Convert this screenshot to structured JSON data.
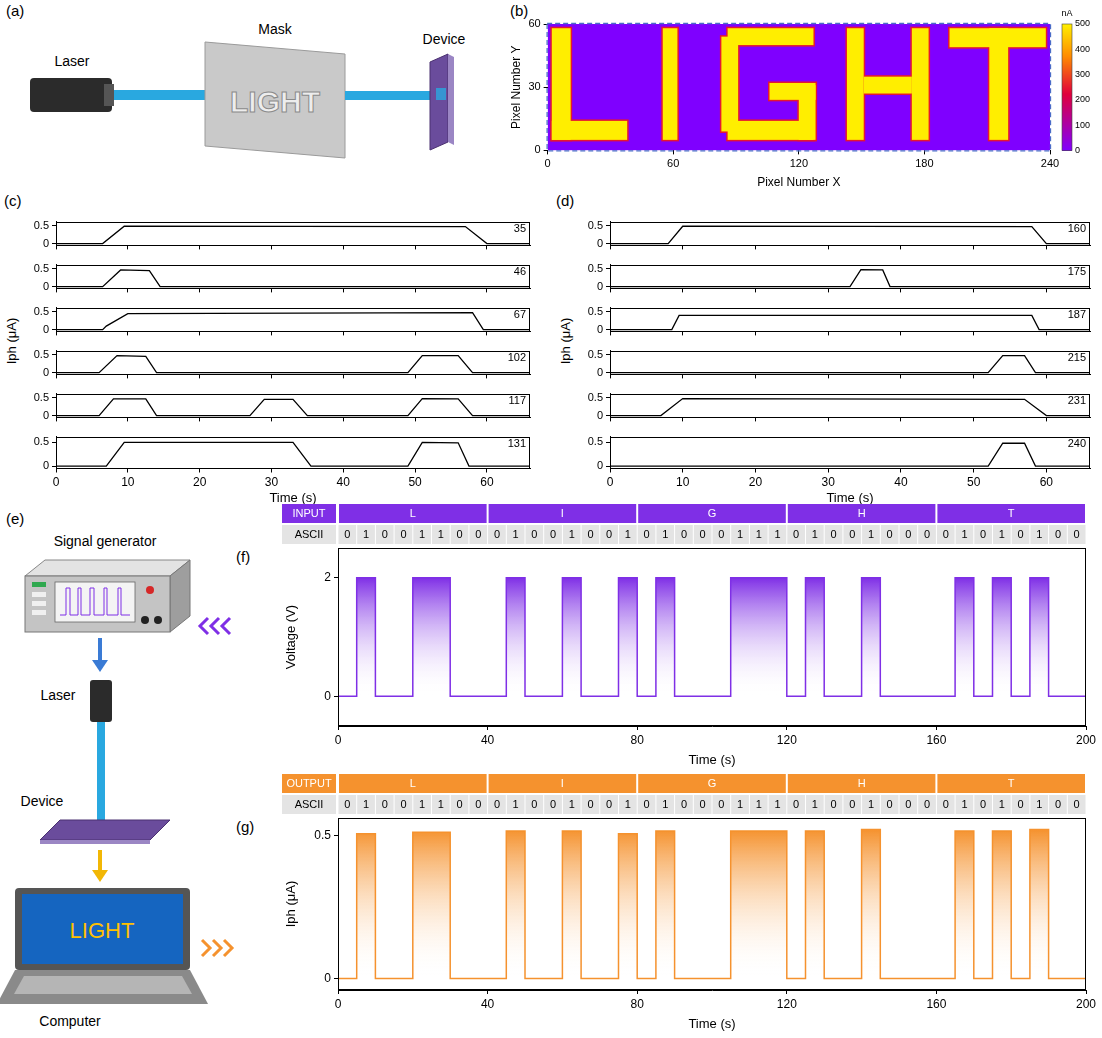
{
  "diagram_a": {
    "panel": "(a)",
    "labels": {
      "laser": "Laser",
      "mask": "Mask",
      "device": "Device"
    },
    "mask_text": "LIGHT"
  },
  "chart_data": [
    {
      "panel": "(b)",
      "type": "heatmap",
      "xlabel": "Pixel Number X",
      "ylabel": "Pixel Number Y",
      "xlim": [
        0,
        240
      ],
      "xticks": [
        0,
        60,
        120,
        180,
        240
      ],
      "ylim": [
        0,
        60
      ],
      "yticks": [
        0,
        30,
        60
      ],
      "background": 0,
      "cells": [
        {
          "x": [
            2,
            11
          ],
          "y": [
            5,
            58
          ],
          "value": 500
        },
        {
          "x": [
            2,
            38
          ],
          "y": [
            5,
            14
          ],
          "value": 500
        },
        {
          "x": [
            55,
            62
          ],
          "y": [
            5,
            58
          ],
          "value": 500
        },
        {
          "x": [
            83,
            91
          ],
          "y": [
            9,
            54
          ],
          "value": 500
        },
        {
          "x": [
            86,
            127
          ],
          "y": [
            50,
            58
          ],
          "value": 500
        },
        {
          "x": [
            86,
            127
          ],
          "y": [
            5,
            14
          ],
          "value": 500
        },
        {
          "x": [
            120,
            128
          ],
          "y": [
            5,
            31
          ],
          "value": 500
        },
        {
          "x": [
            106,
            128
          ],
          "y": [
            24,
            32
          ],
          "value": 500
        },
        {
          "x": [
            143,
            151
          ],
          "y": [
            5,
            58
          ],
          "value": 500
        },
        {
          "x": [
            174,
            182
          ],
          "y": [
            5,
            58
          ],
          "value": 500
        },
        {
          "x": [
            151,
            174
          ],
          "y": [
            27,
            35
          ],
          "value": 500
        },
        {
          "x": [
            192,
            238
          ],
          "y": [
            49,
            58
          ],
          "value": 500
        },
        {
          "x": [
            211,
            220
          ],
          "y": [
            5,
            58
          ],
          "value": 500
        }
      ],
      "colorbar": {
        "label": "nA",
        "range": [
          0,
          500
        ],
        "ticks": [
          0,
          100,
          200,
          300,
          400,
          500
        ]
      }
    },
    {
      "panel": "(c)",
      "type": "line",
      "xlabel": "Time (s)",
      "ylabel": "Iph (μA)",
      "xlim": [
        0,
        66
      ],
      "xticks": [
        0,
        10,
        20,
        30,
        40,
        50,
        60
      ],
      "ylim": [
        -0.05,
        0.62
      ],
      "yticks": [
        0,
        0.5
      ],
      "color": "#000000",
      "series": [
        {
          "name": "35",
          "x": [
            0,
            6.5,
            9.5,
            57,
            60,
            66
          ],
          "values": [
            0,
            0,
            0.49,
            0.48,
            0,
            0
          ]
        },
        {
          "name": "46",
          "x": [
            0,
            6.5,
            9,
            13,
            14.5,
            66
          ],
          "values": [
            0,
            0,
            0.47,
            0.45,
            0,
            0
          ]
        },
        {
          "name": "67",
          "x": [
            0,
            6.5,
            7,
            10,
            58,
            59.5,
            66
          ],
          "values": [
            0,
            0,
            0.1,
            0.45,
            0.48,
            0,
            0
          ]
        },
        {
          "name": "102",
          "x": [
            0,
            6,
            8.5,
            12.5,
            14,
            49,
            51,
            56,
            58,
            66
          ],
          "values": [
            0,
            0,
            0.48,
            0.46,
            0,
            0,
            0.48,
            0.48,
            0,
            0
          ]
        },
        {
          "name": "117",
          "x": [
            0,
            6,
            8,
            12.5,
            14,
            27,
            29,
            33,
            35,
            49,
            51,
            56,
            58,
            66
          ],
          "values": [
            0,
            0,
            0.47,
            0.47,
            0,
            0,
            0.46,
            0.46,
            0,
            0,
            0.48,
            0.47,
            0,
            0
          ]
        },
        {
          "name": "131",
          "x": [
            0,
            7,
            9.5,
            33,
            35.5,
            49,
            51,
            56,
            57.5,
            66
          ],
          "values": [
            0,
            0,
            0.5,
            0.5,
            0,
            0,
            0.5,
            0.49,
            0,
            0
          ]
        }
      ]
    },
    {
      "panel": "(d)",
      "type": "line",
      "xlabel": "Time (s)",
      "ylabel": "Iph (μA)",
      "xlim": [
        0,
        66
      ],
      "xticks": [
        0,
        10,
        20,
        30,
        40,
        50,
        60
      ],
      "ylim": [
        -0.05,
        0.62
      ],
      "yticks": [
        0,
        0.5
      ],
      "color": "#000000",
      "series": [
        {
          "name": "160",
          "x": [
            0,
            8,
            10,
            58,
            60,
            66
          ],
          "values": [
            0,
            0,
            0.49,
            0.48,
            0,
            0
          ]
        },
        {
          "name": "175",
          "x": [
            0,
            33,
            34.5,
            37.5,
            38.5,
            66
          ],
          "values": [
            0,
            0,
            0.48,
            0.47,
            0,
            0
          ]
        },
        {
          "name": "187",
          "x": [
            0,
            8.5,
            9.5,
            58,
            59,
            66
          ],
          "values": [
            0,
            0,
            0.4,
            0.4,
            0,
            0
          ]
        },
        {
          "name": "215",
          "x": [
            0,
            52,
            54,
            57,
            58.5,
            66
          ],
          "values": [
            0,
            0,
            0.48,
            0.48,
            0,
            0
          ]
        },
        {
          "name": "231",
          "x": [
            0,
            7,
            10,
            57,
            60,
            66
          ],
          "values": [
            0,
            0,
            0.48,
            0.46,
            0,
            0
          ]
        },
        {
          "name": "240",
          "x": [
            0,
            52,
            54,
            57,
            58.5,
            66
          ],
          "values": [
            0,
            0,
            0.48,
            0.48,
            0,
            0
          ]
        }
      ]
    },
    {
      "panel": "(f)",
      "type": "line",
      "xlabel": "Time (s)",
      "ylabel": "Voltage (V)",
      "xlim": [
        0,
        200
      ],
      "xticks": [
        0,
        40,
        80,
        120,
        160,
        200
      ],
      "ylim": [
        -0.5,
        2.5
      ],
      "yticks": [
        0,
        2
      ],
      "color": "#7f2fe6",
      "header": {
        "label": "INPUT",
        "row_label": "ASCII",
        "chars": [
          "L",
          "I",
          "G",
          "H",
          "T"
        ],
        "codes": [
          "01001100",
          "01001001",
          "01000111",
          "01001000",
          "01010100"
        ]
      },
      "x": [
        0,
        5,
        5,
        10,
        10,
        20,
        20,
        30,
        30,
        45,
        45,
        50,
        50,
        60,
        60,
        65,
        65,
        75,
        75,
        80,
        80,
        85,
        85,
        90,
        90,
        105,
        105,
        120,
        120,
        125,
        125,
        130,
        130,
        140,
        140,
        145,
        145,
        165,
        165,
        170,
        170,
        175,
        175,
        180,
        180,
        185,
        185,
        190,
        190,
        200
      ],
      "values": [
        0,
        0,
        2,
        2,
        0,
        0,
        2,
        2,
        0,
        0,
        2,
        2,
        0,
        0,
        2,
        2,
        0,
        0,
        2,
        2,
        0,
        0,
        2,
        2,
        0,
        0,
        2,
        2,
        0,
        0,
        2,
        2,
        0,
        0,
        2,
        2,
        0,
        0,
        2,
        2,
        0,
        0,
        2,
        2,
        0,
        0,
        2,
        2,
        0,
        0
      ]
    },
    {
      "panel": "(g)",
      "type": "line",
      "xlabel": "Time (s)",
      "ylabel": "Iph (μA)",
      "xlim": [
        0,
        200
      ],
      "xticks": [
        0,
        40,
        80,
        120,
        160,
        200
      ],
      "ylim": [
        -0.04,
        0.56
      ],
      "yticks": [
        0,
        0.5
      ],
      "color": "#f5922e",
      "header": {
        "label": "OUTPUT",
        "row_label": "ASCII",
        "chars": [
          "L",
          "I",
          "G",
          "H",
          "T"
        ],
        "codes": [
          "01001100",
          "01001001",
          "01000111",
          "01001000",
          "01010100"
        ]
      },
      "x": [
        0,
        5,
        5,
        10,
        10,
        20,
        20,
        30,
        30,
        45,
        45,
        50,
        50,
        60,
        60,
        65,
        65,
        75,
        75,
        80,
        80,
        85,
        85,
        90,
        90,
        105,
        105,
        120,
        120,
        125,
        125,
        130,
        130,
        140,
        140,
        145,
        145,
        165,
        165,
        170,
        170,
        175,
        175,
        180,
        180,
        185,
        185,
        190,
        190,
        200
      ],
      "values": [
        0,
        0,
        0.505,
        0.505,
        0,
        0,
        0.51,
        0.51,
        0,
        0,
        0.515,
        0.515,
        0,
        0,
        0.515,
        0.515,
        0,
        0,
        0.505,
        0.505,
        0,
        0,
        0.515,
        0.515,
        0,
        0,
        0.515,
        0.515,
        0,
        0,
        0.515,
        0.515,
        0,
        0,
        0.52,
        0.52,
        0,
        0,
        0.515,
        0.515,
        0,
        0,
        0.515,
        0.515,
        0,
        0,
        0.52,
        0.52,
        0,
        0
      ]
    }
  ],
  "diagram_e": {
    "panel": "(e)",
    "labels": {
      "generator": "Signal generator",
      "laser": "Laser",
      "device": "Device",
      "computer": "Computer"
    },
    "screen_text": "LIGHT"
  }
}
